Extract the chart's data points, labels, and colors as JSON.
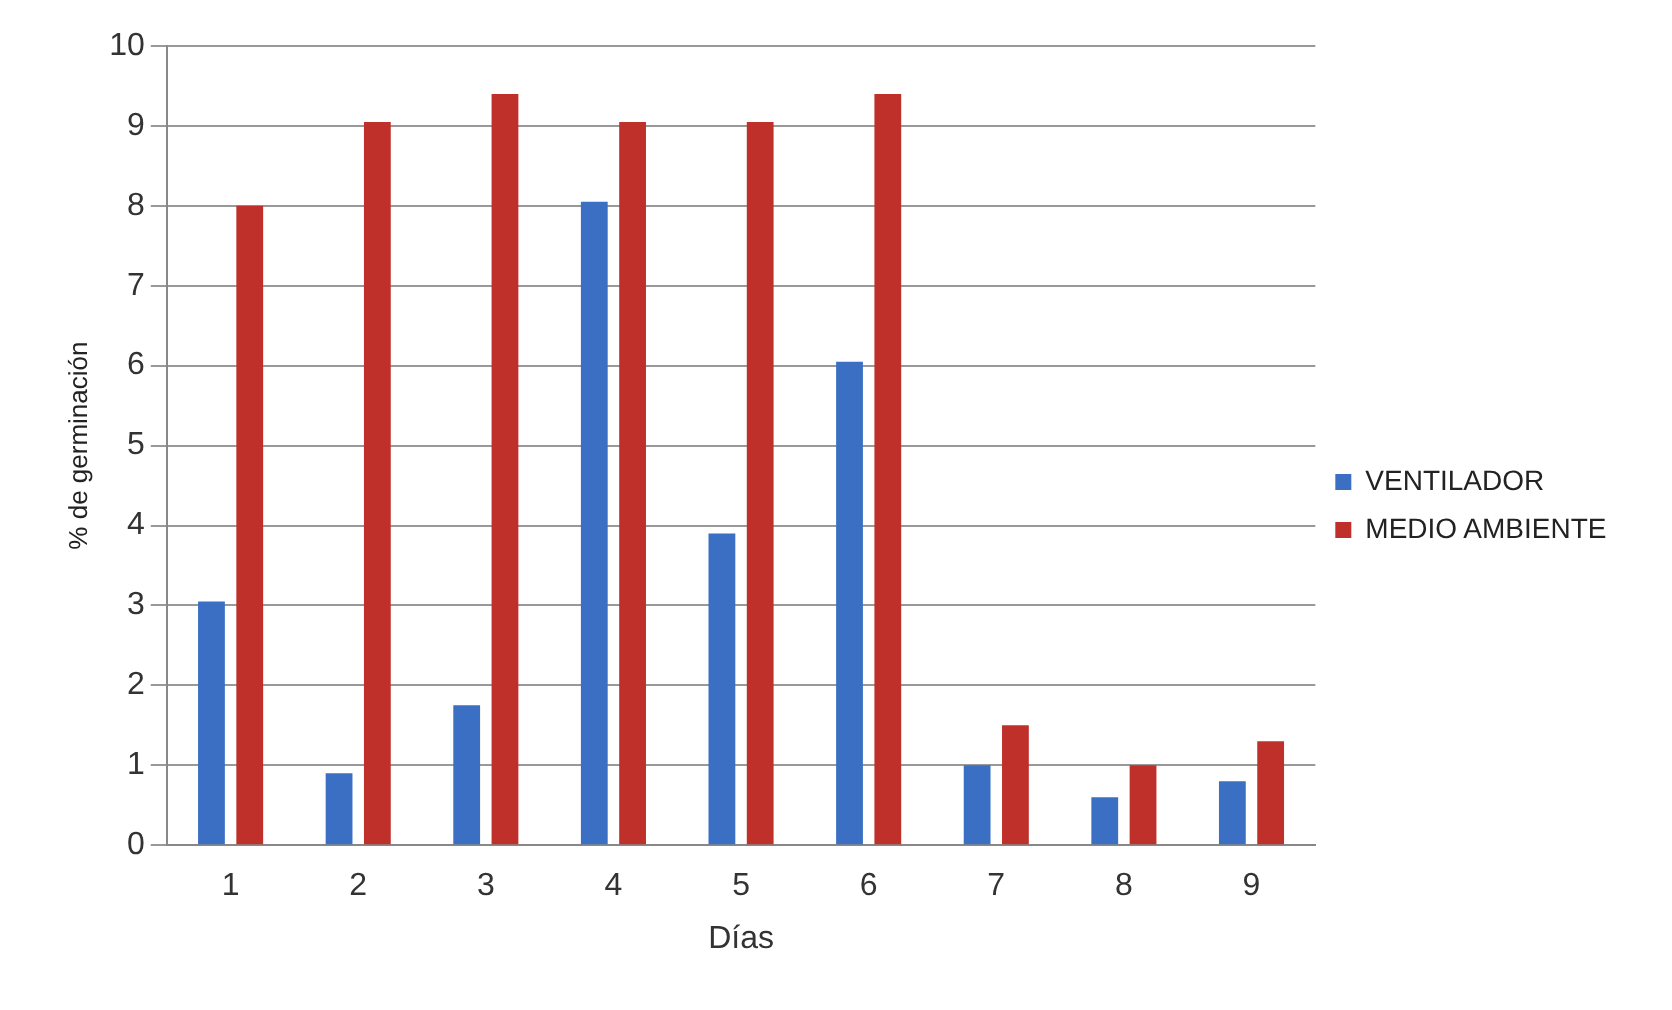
{
  "chart_data": {
    "type": "bar",
    "xlabel": "Días",
    "ylabel": "% de germinación",
    "categories": [
      "1",
      "2",
      "3",
      "4",
      "5",
      "6",
      "7",
      "8",
      "9"
    ],
    "series": [
      {
        "name": "VENTILADOR",
        "color": "#3a6fc4",
        "values": [
          3.05,
          0.9,
          1.75,
          8.05,
          3.9,
          6.05,
          1.0,
          0.6,
          0.8
        ]
      },
      {
        "name": "MEDIO AMBIENTE",
        "color": "#c0302a",
        "values": [
          8.0,
          9.05,
          9.4,
          9.05,
          9.05,
          9.4,
          1.5,
          1.0,
          1.3
        ]
      }
    ],
    "ylim": [
      0,
      10
    ],
    "yticks": [
      0,
      1,
      2,
      3,
      4,
      5,
      6,
      7,
      8,
      9,
      10
    ],
    "grid": "y",
    "legend": "right"
  }
}
